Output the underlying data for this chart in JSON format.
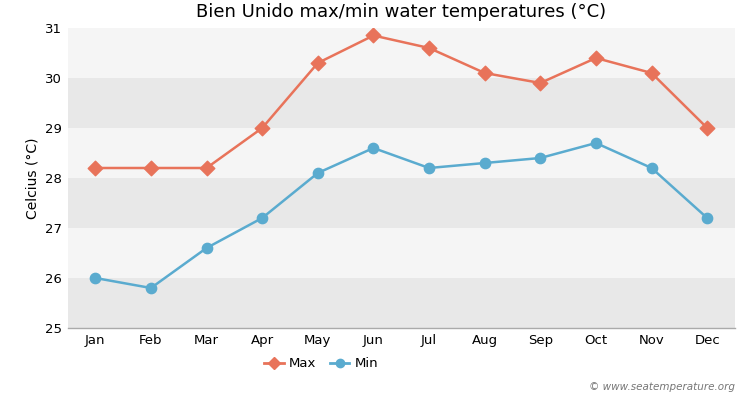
{
  "title": "Bien Unido max/min water temperatures (°C)",
  "ylabel": "Celcius (°C)",
  "months": [
    "Jan",
    "Feb",
    "Mar",
    "Apr",
    "May",
    "Jun",
    "Jul",
    "Aug",
    "Sep",
    "Oct",
    "Nov",
    "Dec"
  ],
  "max_temps": [
    28.2,
    28.2,
    28.2,
    29.0,
    30.3,
    30.85,
    30.6,
    30.1,
    29.9,
    30.4,
    30.1,
    29.0
  ],
  "min_temps": [
    26.0,
    25.8,
    26.6,
    27.2,
    28.1,
    28.6,
    28.2,
    28.3,
    28.4,
    28.7,
    28.2,
    27.2
  ],
  "max_color": "#e8735a",
  "min_color": "#5aabcf",
  "fig_bg_color": "#ffffff",
  "band_colors": [
    "#e8e8e8",
    "#f5f5f5"
  ],
  "ylim": [
    25,
    31
  ],
  "yticks": [
    25,
    26,
    27,
    28,
    29,
    30,
    31
  ],
  "watermark": "© www.seatemperature.org",
  "title_fontsize": 13,
  "axis_label_fontsize": 10,
  "tick_fontsize": 9.5
}
